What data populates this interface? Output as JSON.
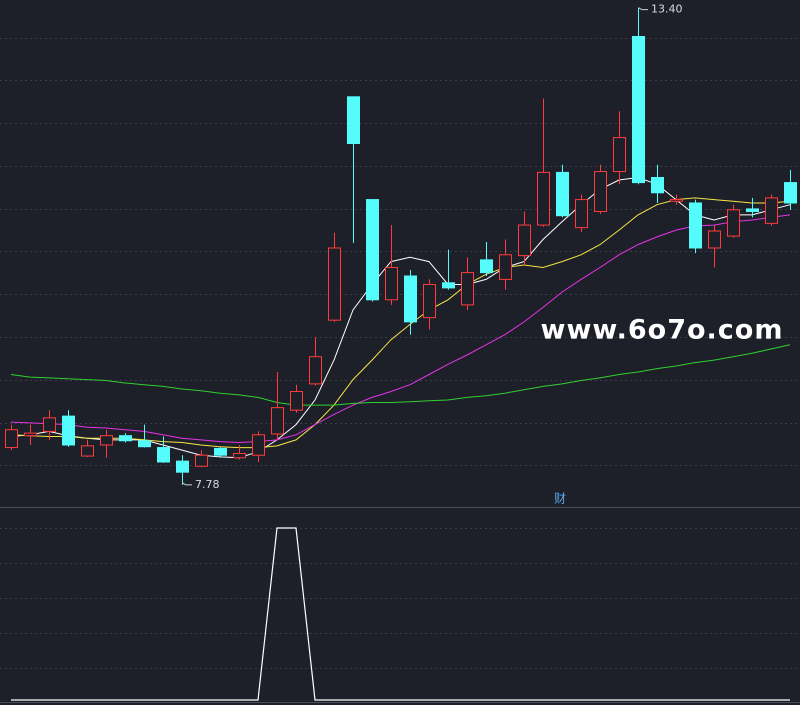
{
  "chart_data": {
    "type": "candlestick",
    "ylim": [
      7.52,
      13.49
    ],
    "up_color": "#ff3b3b",
    "down_color": "#54fcfc",
    "candles": {
      "open": [
        8.22,
        8.36,
        8.41,
        8.59,
        8.12,
        8.25,
        8.36,
        8.3,
        8.22,
        8.06,
        8.0,
        8.21,
        8.1,
        8.13,
        8.38,
        8.66,
        8.97,
        9.72,
        12.35,
        11.14,
        9.96,
        10.24,
        9.75,
        10.16,
        9.9,
        10.43,
        10.2,
        10.48,
        10.84,
        11.46,
        10.81,
        11.0,
        11.47,
        13.06,
        11.4,
        11.12,
        11.1,
        10.57,
        10.71,
        11.03,
        10.86,
        11.34
      ],
      "high": [
        8.49,
        8.49,
        8.66,
        8.66,
        8.31,
        8.43,
        8.39,
        8.49,
        8.35,
        8.13,
        8.19,
        8.23,
        8.25,
        8.41,
        9.11,
        8.96,
        9.52,
        10.75,
        12.35,
        11.14,
        10.84,
        10.31,
        10.2,
        10.55,
        10.46,
        10.64,
        10.67,
        11.0,
        12.33,
        11.55,
        11.2,
        11.55,
        12.18,
        13.4,
        11.55,
        11.2,
        11.14,
        10.84,
        11.08,
        11.16,
        11.2,
        11.49
      ],
      "low": [
        8.19,
        8.25,
        8.31,
        8.23,
        8.11,
        8.1,
        8.28,
        8.22,
        8.04,
        7.78,
        7.99,
        8.1,
        8.08,
        8.05,
        8.31,
        8.63,
        8.95,
        9.7,
        10.63,
        9.94,
        9.9,
        9.55,
        9.61,
        10.08,
        9.84,
        10.24,
        10.08,
        10.36,
        10.82,
        10.93,
        10.76,
        10.97,
        11.32,
        11.32,
        11.1,
        11.08,
        10.51,
        10.34,
        10.69,
        10.93,
        10.83,
        11.02
      ],
      "close": [
        8.43,
        8.39,
        8.57,
        8.25,
        8.24,
        8.36,
        8.3,
        8.23,
        8.05,
        7.93,
        8.13,
        8.13,
        8.15,
        8.37,
        8.69,
        8.88,
        9.29,
        10.57,
        11.8,
        9.96,
        10.34,
        9.7,
        10.14,
        10.1,
        10.28,
        10.28,
        10.49,
        10.84,
        11.46,
        10.95,
        11.14,
        11.47,
        11.87,
        11.34,
        11.22,
        11.14,
        10.57,
        10.77,
        11.02,
        11.0,
        11.16,
        11.1
      ]
    },
    "ma_lines": [
      {
        "color": "#ffffff",
        "values": [
          8.35,
          8.37,
          8.41,
          8.36,
          8.33,
          8.31,
          8.31,
          8.31,
          8.25,
          8.19,
          8.13,
          8.11,
          8.1,
          8.17,
          8.31,
          8.49,
          8.78,
          9.25,
          9.84,
          10.14,
          10.41,
          10.46,
          10.41,
          10.14,
          10.14,
          10.2,
          10.34,
          10.41,
          10.67,
          10.88,
          11.08,
          11.26,
          11.37,
          11.4,
          11.32,
          11.14,
          10.96,
          10.9,
          10.96,
          10.96,
          11.02,
          11.08
        ]
      },
      {
        "color": "#f5e642",
        "values": [
          8.37,
          8.36,
          8.35,
          8.35,
          8.33,
          8.33,
          8.33,
          8.31,
          8.29,
          8.28,
          8.25,
          8.23,
          8.22,
          8.22,
          8.24,
          8.31,
          8.49,
          8.72,
          9.02,
          9.25,
          9.49,
          9.67,
          9.84,
          9.96,
          10.14,
          10.26,
          10.34,
          10.37,
          10.34,
          10.41,
          10.49,
          10.61,
          10.78,
          10.96,
          11.08,
          11.14,
          11.16,
          11.14,
          11.12,
          11.1,
          11.1,
          11.12
        ]
      },
      {
        "color": "#e633e6",
        "values": [
          8.52,
          8.51,
          8.5,
          8.49,
          8.46,
          8.45,
          8.43,
          8.41,
          8.37,
          8.33,
          8.31,
          8.29,
          8.28,
          8.29,
          8.31,
          8.37,
          8.49,
          8.61,
          8.72,
          8.81,
          8.88,
          8.96,
          9.08,
          9.2,
          9.31,
          9.43,
          9.55,
          9.7,
          9.87,
          10.05,
          10.2,
          10.34,
          10.49,
          10.61,
          10.7,
          10.78,
          10.83,
          10.84,
          10.88,
          10.9,
          10.93,
          10.96
        ]
      },
      {
        "color": "#2fd12f",
        "values": [
          9.08,
          9.05,
          9.04,
          9.03,
          9.02,
          9.01,
          8.98,
          8.96,
          8.94,
          8.91,
          8.89,
          8.86,
          8.84,
          8.81,
          8.75,
          8.72,
          8.72,
          8.72,
          8.74,
          8.75,
          8.75,
          8.76,
          8.77,
          8.78,
          8.81,
          8.83,
          8.86,
          8.9,
          8.94,
          8.97,
          9.01,
          9.04,
          9.08,
          9.11,
          9.15,
          9.18,
          9.22,
          9.25,
          9.29,
          9.33,
          9.38,
          9.43
        ]
      }
    ],
    "high_label": {
      "index": 33,
      "text": "13.40"
    },
    "low_label": {
      "index": 9,
      "text": "7.78"
    },
    "marker_text": "财",
    "watermark": "www.6o7o.com",
    "indicator": {
      "color": "#ffffff",
      "ylim": [
        0,
        1
      ],
      "values": [
        0,
        0,
        0,
        0,
        0,
        0,
        0,
        0,
        0,
        0,
        0,
        0,
        0,
        0,
        1,
        1,
        0,
        0,
        0,
        0,
        0,
        0,
        0,
        0,
        0,
        0,
        0,
        0,
        0,
        0,
        0,
        0,
        0,
        0,
        0,
        0,
        0,
        0,
        0,
        0,
        0,
        0
      ]
    }
  }
}
